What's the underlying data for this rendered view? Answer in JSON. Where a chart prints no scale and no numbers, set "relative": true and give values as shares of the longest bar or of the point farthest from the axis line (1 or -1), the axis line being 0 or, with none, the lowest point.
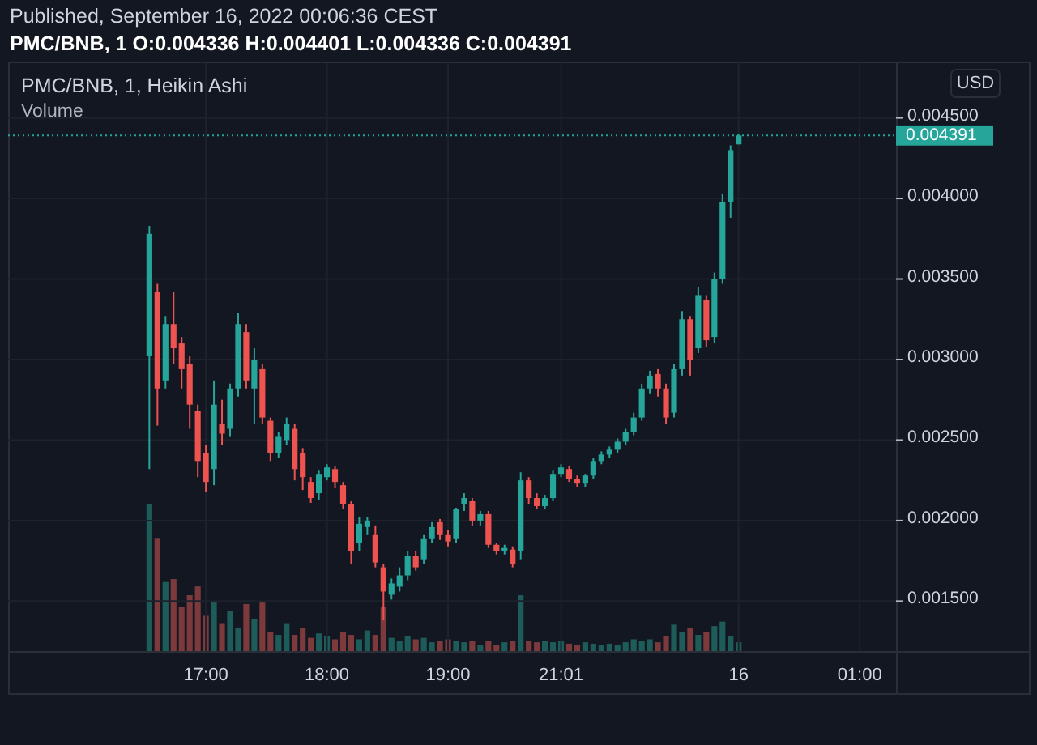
{
  "chart_data": [
    {
      "type": "candlestick",
      "annotations": [
        "Published, September 16, 2022 00:06:36 CEST"
      ],
      "title": "PMC/BNB, 1  O:0.004336 H:0.004401 L:0.004336 C:0.004391",
      "subtitle": "PMC/BNB, 1, Heikin Ashi",
      "ylabel": "USD",
      "categories": [
        null,
        null,
        null,
        null,
        null,
        null,
        null,
        null,
        null,
        null,
        null,
        null,
        null,
        null,
        null,
        null,
        null,
        null,
        null,
        null,
        null,
        null,
        null,
        null,
        "17:00",
        null,
        null,
        null,
        null,
        null,
        null,
        null,
        null,
        null,
        null,
        null,
        null,
        null,
        null,
        "18:00",
        null,
        null,
        null,
        null,
        null,
        null,
        null,
        null,
        null,
        null,
        null,
        null,
        null,
        null,
        "19:00",
        null,
        null,
        null,
        null,
        null,
        null,
        null,
        null,
        null,
        null,
        null,
        null,
        null,
        "21:01",
        null,
        null,
        null,
        null,
        null,
        null,
        null,
        null,
        null,
        null,
        null,
        null,
        null,
        null,
        null,
        null,
        null,
        null,
        null,
        null,
        null,
        "16",
        null,
        null,
        null,
        null,
        null,
        null,
        null,
        null,
        null,
        null,
        null,
        null,
        null,
        null,
        "01:00",
        null,
        null,
        null,
        null
      ],
      "ohlc": [
        null,
        null,
        null,
        null,
        null,
        null,
        null,
        null,
        null,
        null,
        null,
        null,
        null,
        null,
        null,
        null,
        null,
        [
          0.00302,
          0.00383,
          0.00232,
          0.00378
        ],
        [
          0.00342,
          0.00347,
          0.00259,
          0.00282
        ],
        [
          0.00287,
          0.00327,
          0.00282,
          0.00322
        ],
        [
          0.00322,
          0.00342,
          0.00297,
          0.00307
        ],
        [
          0.0031,
          0.00314,
          0.00282,
          0.00294
        ],
        [
          0.00297,
          0.00302,
          0.00257,
          0.00272
        ],
        [
          0.00268,
          0.00272,
          0.00227,
          0.00237
        ],
        [
          0.00242,
          0.00247,
          0.00218,
          0.00224
        ],
        [
          0.00232,
          0.00287,
          0.00222,
          0.00272
        ],
        [
          0.0026,
          0.00275,
          0.00247,
          0.00254
        ],
        [
          0.00257,
          0.00285,
          0.00252,
          0.00282
        ],
        [
          0.00282,
          0.00329,
          0.00277,
          0.00322
        ],
        [
          0.00317,
          0.00322,
          0.00282,
          0.00287
        ],
        [
          0.00282,
          0.00307,
          0.0026,
          0.003
        ],
        [
          0.00294,
          0.00297,
          0.0026,
          0.00264
        ],
        [
          0.00262,
          0.00264,
          0.00237,
          0.00242
        ],
        [
          0.00242,
          0.00255,
          0.00239,
          0.00252
        ],
        [
          0.0025,
          0.00264,
          0.00247,
          0.0026
        ],
        [
          0.00257,
          0.0026,
          0.00225,
          0.00232
        ],
        [
          0.00242,
          0.00245,
          0.00219,
          0.00227
        ],
        [
          0.00224,
          0.00227,
          0.00211,
          0.00214
        ],
        [
          0.00217,
          0.00231,
          0.00213,
          0.00229
        ],
        [
          0.00227,
          0.00235,
          0.00225,
          0.00233
        ],
        [
          0.00232,
          0.00234,
          0.0022,
          0.00224
        ],
        [
          0.00222,
          0.00224,
          0.00207,
          0.0021
        ],
        [
          0.0021,
          0.00212,
          0.00173,
          0.00181
        ],
        [
          0.00186,
          0.00202,
          0.00181,
          0.00198
        ],
        [
          0.00196,
          0.00202,
          0.00191,
          0.002
        ],
        [
          0.00191,
          0.00197,
          0.00171,
          0.00174
        ],
        [
          0.00171,
          0.00173,
          0.00138,
          0.00156
        ],
        [
          0.00154,
          0.00164,
          0.00151,
          0.00161
        ],
        [
          0.00159,
          0.00171,
          0.00156,
          0.00166
        ],
        [
          0.00166,
          0.00181,
          0.00163,
          0.00178
        ],
        [
          0.00178,
          0.00181,
          0.00169,
          0.00171
        ],
        [
          0.00176,
          0.00191,
          0.00173,
          0.00189
        ],
        [
          0.00189,
          0.00199,
          0.00186,
          0.00196
        ],
        [
          0.00199,
          0.00201,
          0.00188,
          0.00191
        ],
        [
          0.00191,
          0.00194,
          0.00184,
          0.00187
        ],
        [
          0.00189,
          0.00208,
          0.00186,
          0.00207
        ],
        [
          0.0021,
          0.00217,
          0.00206,
          0.00214
        ],
        [
          0.00212,
          0.00214,
          0.00197,
          0.002
        ],
        [
          0.002,
          0.00206,
          0.00197,
          0.00204
        ],
        [
          0.00204,
          0.00206,
          0.00183,
          0.00185
        ],
        [
          0.00185,
          0.00186,
          0.00179,
          0.00181
        ],
        [
          0.00181,
          0.00185,
          0.00179,
          0.00183
        ],
        [
          0.00182,
          0.00184,
          0.00171,
          0.00173
        ],
        [
          0.00181,
          0.0023,
          0.00176,
          0.00225
        ],
        [
          0.00225,
          0.00227,
          0.0021,
          0.00214
        ],
        [
          0.00214,
          0.00217,
          0.00207,
          0.00209
        ],
        [
          0.00209,
          0.00216,
          0.00207,
          0.00214
        ],
        [
          0.00214,
          0.00231,
          0.00212,
          0.00229
        ],
        [
          0.00229,
          0.00235,
          0.00227,
          0.00233
        ],
        [
          0.00232,
          0.00234,
          0.00224,
          0.00226
        ],
        [
          0.00226,
          0.00228,
          0.00221,
          0.00223
        ],
        [
          0.00223,
          0.00229,
          0.00221,
          0.00228
        ],
        [
          0.00228,
          0.00239,
          0.00226,
          0.00237
        ],
        [
          0.00237,
          0.00243,
          0.00235,
          0.00241
        ],
        [
          0.00241,
          0.00246,
          0.00239,
          0.00244
        ],
        [
          0.00244,
          0.00251,
          0.00242,
          0.00249
        ],
        [
          0.00249,
          0.00257,
          0.00247,
          0.00255
        ],
        [
          0.00255,
          0.00267,
          0.00253,
          0.00264
        ],
        [
          0.00264,
          0.00285,
          0.00262,
          0.00282
        ],
        [
          0.00282,
          0.00293,
          0.00279,
          0.0029
        ],
        [
          0.00291,
          0.00294,
          0.00277,
          0.00282
        ],
        [
          0.00282,
          0.00285,
          0.0026,
          0.00264
        ],
        [
          0.00267,
          0.00297,
          0.00264,
          0.00294
        ],
        [
          0.00294,
          0.0033,
          0.0029,
          0.00325
        ],
        [
          0.00325,
          0.00327,
          0.0029,
          0.003
        ],
        [
          0.00307,
          0.00345,
          0.00304,
          0.0034
        ],
        [
          0.00337,
          0.0034,
          0.00308,
          0.00312
        ],
        [
          0.00314,
          0.00354,
          0.0031,
          0.0035
        ],
        [
          0.0035,
          0.00403,
          0.00347,
          0.00398
        ],
        [
          0.00398,
          0.00433,
          0.00388,
          0.0043
        ],
        [
          0.004336,
          0.004401,
          0.004336,
          0.004391
        ],
        null,
        null,
        null,
        null,
        null,
        null,
        null,
        null,
        null,
        null,
        null,
        null,
        null,
        null,
        null,
        null,
        null,
        null,
        null
      ],
      "colors": [
        null,
        null,
        null,
        null,
        null,
        null,
        null,
        null,
        null,
        null,
        null,
        null,
        null,
        null,
        null,
        null,
        null,
        "#26a69a",
        "#ef5350",
        "#26a69a",
        "#ef5350",
        "#ef5350",
        "#ef5350",
        "#ef5350",
        "#ef5350",
        "#26a69a",
        "#ef5350",
        "#26a69a",
        "#26a69a",
        "#ef5350",
        "#26a69a",
        "#ef5350",
        "#ef5350",
        "#26a69a",
        "#26a69a",
        "#ef5350",
        "#ef5350",
        "#ef5350",
        "#26a69a",
        "#26a69a",
        "#ef5350",
        "#ef5350",
        "#ef5350",
        "#26a69a",
        "#26a69a",
        "#ef5350",
        "#ef5350",
        "#26a69a",
        "#26a69a",
        "#26a69a",
        "#ef5350",
        "#26a69a",
        "#26a69a",
        "#ef5350",
        "#ef5350",
        "#26a69a",
        "#26a69a",
        "#ef5350",
        "#26a69a",
        "#ef5350",
        "#ef5350",
        "#26a69a",
        "#ef5350",
        "#26a69a",
        "#ef5350",
        "#ef5350",
        "#26a69a",
        "#26a69a",
        "#26a69a",
        "#ef5350",
        "#ef5350",
        "#26a69a",
        "#26a69a",
        "#26a69a",
        "#26a69a",
        "#26a69a",
        "#26a69a",
        "#26a69a",
        "#26a69a",
        "#26a69a",
        "#ef5350",
        "#ef5350",
        "#26a69a",
        "#26a69a",
        "#ef5350",
        "#26a69a",
        "#ef5350",
        "#26a69a",
        "#26a69a",
        "#26a69a",
        "#26a69a",
        null,
        null,
        null,
        null,
        null,
        null,
        null,
        null,
        null,
        null,
        null,
        null,
        null,
        null,
        null,
        null,
        null,
        null,
        null
      ],
      "ylim": [
        0.00119,
        0.00484
      ],
      "yticks": [
        {
          "value": 0.0015,
          "label": "0.001500"
        },
        {
          "value": 0.002,
          "label": "0.002000"
        },
        {
          "value": 0.0025,
          "label": "0.002500"
        },
        {
          "value": 0.003,
          "label": "0.003000"
        },
        {
          "value": 0.0035,
          "label": "0.003500"
        },
        {
          "value": 0.004,
          "label": "0.004000"
        },
        {
          "value": 0.0045,
          "label": "0.004500"
        }
      ],
      "grid": true,
      "ref_lines": [
        {
          "axis": "y",
          "value": 0.004391,
          "label": "0.004391",
          "color": "#26a69a",
          "line_style": "dotted"
        }
      ]
    },
    {
      "type": "bar",
      "title": "Volume",
      "relative": true,
      "categories": [
        null,
        null,
        null,
        null,
        null,
        null,
        null,
        null,
        null,
        null,
        null,
        null,
        null,
        null,
        null,
        null,
        null,
        null,
        null,
        null,
        null,
        null,
        null,
        null,
        null,
        null,
        null,
        null,
        null,
        null,
        null,
        null,
        null,
        null,
        null,
        null,
        null,
        null,
        null,
        null,
        null,
        null,
        null,
        null,
        null,
        null,
        null,
        null,
        null,
        null,
        null,
        null,
        null,
        null,
        null,
        null,
        null,
        null,
        null,
        null,
        null,
        null,
        null,
        null,
        null,
        null,
        null,
        null,
        null,
        null,
        null,
        null,
        null,
        null,
        null,
        null,
        null,
        null,
        null,
        null,
        null,
        null,
        null,
        null,
        null,
        null,
        null,
        null,
        null,
        null,
        null,
        null,
        null,
        null,
        null,
        null,
        null,
        null,
        null,
        null,
        null,
        null,
        null,
        null,
        null,
        null,
        null,
        null,
        null,
        null
      ],
      "values": [
        null,
        null,
        null,
        null,
        null,
        null,
        null,
        null,
        null,
        null,
        null,
        null,
        null,
        null,
        null,
        null,
        null,
        1,
        0.77,
        0.47,
        0.49,
        0.3,
        0.38,
        0.44,
        0.24,
        0.33,
        0.19,
        0.27,
        0.16,
        0.32,
        0.22,
        0.33,
        0.13,
        0.11,
        0.19,
        0.11,
        0.16,
        0.09,
        0.12,
        0.1,
        0.08,
        0.13,
        0.11,
        0.08,
        0.14,
        0.11,
        0.3,
        0.09,
        0.07,
        0.1,
        0.08,
        0.09,
        0.06,
        0.07,
        0.08,
        0.07,
        0.06,
        0.07,
        0.04,
        0.07,
        0.04,
        0.06,
        0.07,
        0.38,
        0.07,
        0.06,
        0.07,
        0.06,
        0.07,
        0.05,
        0.04,
        0.06,
        0.05,
        0.04,
        0.05,
        0.04,
        0.06,
        0.08,
        0.07,
        0.08,
        0.06,
        0.1,
        0.18,
        0.13,
        0.16,
        0.11,
        0.13,
        0.17,
        0.2,
        0.1,
        0.06,
        null,
        null,
        null,
        null,
        null,
        null,
        null,
        null,
        null,
        null,
        null,
        null,
        null,
        null,
        null,
        null,
        null,
        null,
        null
      ],
      "colors": [
        null,
        null,
        null,
        null,
        null,
        null,
        null,
        null,
        null,
        null,
        null,
        null,
        null,
        null,
        null,
        null,
        null,
        "#1e5c5a",
        "#7c3a3d",
        "#1e5c5a",
        "#7c3a3d",
        "#7c3a3d",
        "#7c3a3d",
        "#7c3a3d",
        "#7c3a3d",
        "#1e5c5a",
        "#7c3a3d",
        "#1e5c5a",
        "#1e5c5a",
        "#7c3a3d",
        "#1e5c5a",
        "#7c3a3d",
        "#7c3a3d",
        "#1e5c5a",
        "#1e5c5a",
        "#7c3a3d",
        "#7c3a3d",
        "#7c3a3d",
        "#1e5c5a",
        "#1e5c5a",
        "#7c3a3d",
        "#7c3a3d",
        "#7c3a3d",
        "#1e5c5a",
        "#1e5c5a",
        "#7c3a3d",
        "#7c3a3d",
        "#1e5c5a",
        "#1e5c5a",
        "#1e5c5a",
        "#7c3a3d",
        "#1e5c5a",
        "#1e5c5a",
        "#7c3a3d",
        "#7c3a3d",
        "#1e5c5a",
        "#1e5c5a",
        "#7c3a3d",
        "#1e5c5a",
        "#7c3a3d",
        "#7c3a3d",
        "#1e5c5a",
        "#7c3a3d",
        "#1e5c5a",
        "#7c3a3d",
        "#7c3a3d",
        "#1e5c5a",
        "#1e5c5a",
        "#1e5c5a",
        "#7c3a3d",
        "#7c3a3d",
        "#1e5c5a",
        "#1e5c5a",
        "#1e5c5a",
        "#1e5c5a",
        "#1e5c5a",
        "#1e5c5a",
        "#1e5c5a",
        "#1e5c5a",
        "#1e5c5a",
        "#7c3a3d",
        "#7c3a3d",
        "#1e5c5a",
        "#1e5c5a",
        "#7c3a3d",
        "#1e5c5a",
        "#7c3a3d",
        "#1e5c5a",
        "#1e5c5a",
        "#1e5c5a",
        "#1e5c5a",
        null,
        null,
        null,
        null,
        null,
        null,
        null,
        null,
        null,
        null,
        null,
        null,
        null,
        null,
        null,
        null,
        null,
        null,
        null
      ]
    }
  ]
}
